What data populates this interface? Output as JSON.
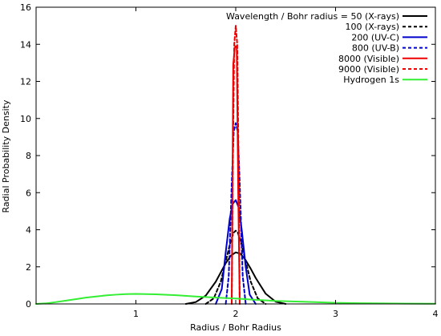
{
  "chart_data": {
    "type": "line",
    "title": "",
    "xlabel": "Radius / Bohr Radius",
    "ylabel": "Radial Probability Density",
    "xlim": [
      0,
      4
    ],
    "ylim": [
      0,
      16
    ],
    "x_ticks": [
      "1",
      "2",
      "3",
      "4"
    ],
    "y_ticks": [
      "0",
      "2",
      "4",
      "6",
      "8",
      "10",
      "12",
      "14",
      "16"
    ],
    "legend_position": "top-right",
    "grid": false,
    "series": [
      {
        "name": "Wavelength / Bohr radius = 50 (X-rays)",
        "color": "#000000",
        "dash": "solid",
        "x": [
          1.5,
          1.6,
          1.7,
          1.8,
          1.85,
          1.9,
          1.95,
          2.0,
          2.05,
          2.1,
          2.15,
          2.2,
          2.3,
          2.4,
          2.5
        ],
        "y": [
          0.0,
          0.1,
          0.45,
          1.2,
          1.7,
          2.2,
          2.6,
          2.78,
          2.7,
          2.35,
          1.9,
          1.4,
          0.55,
          0.12,
          0.0
        ]
      },
      {
        "name": "100 (X-rays)",
        "color": "#000000",
        "dash": "dashed",
        "x": [
          1.7,
          1.78,
          1.85,
          1.9,
          1.95,
          1.98,
          2.0,
          2.02,
          2.05,
          2.1,
          2.15,
          2.22,
          2.3
        ],
        "y": [
          0.0,
          0.3,
          1.2,
          2.3,
          3.4,
          3.85,
          3.95,
          3.85,
          3.4,
          2.3,
          1.2,
          0.3,
          0.0
        ]
      },
      {
        "name": "200 (UV-C)",
        "color": "#0000cc",
        "dash": "solid",
        "x": [
          1.8,
          1.86,
          1.9,
          1.94,
          1.97,
          2.0,
          2.03,
          2.06,
          2.1,
          2.14,
          2.2
        ],
        "y": [
          0.0,
          0.8,
          2.8,
          4.6,
          5.4,
          5.6,
          5.2,
          4.0,
          2.0,
          0.5,
          0.0
        ]
      },
      {
        "name": "800 (UV-B)",
        "color": "#0000cc",
        "dash": "dashed",
        "x": [
          1.9,
          1.93,
          1.96,
          1.98,
          2.0,
          2.02,
          2.04,
          2.07,
          2.1
        ],
        "y": [
          0.0,
          1.5,
          6.5,
          9.3,
          9.75,
          9.3,
          6.5,
          1.5,
          0.0
        ]
      },
      {
        "name": "8000 (Visible)",
        "color": "#ee0000",
        "dash": "solid",
        "x": [
          1.96,
          1.975,
          1.99,
          2.0,
          2.01,
          2.025,
          2.04
        ],
        "y": [
          0.0,
          12.9,
          13.8,
          13.9,
          13.8,
          6.0,
          0.0
        ]
      },
      {
        "name": "9000 (Visible)",
        "color": "#ee0000",
        "dash": "dashed",
        "x": [
          1.96,
          1.97,
          1.985,
          2.0,
          2.015,
          2.03,
          2.04
        ],
        "y": [
          0.0,
          7.0,
          14.0,
          15.0,
          14.0,
          7.0,
          0.0
        ]
      },
      {
        "name": "Hydrogen 1s",
        "color": "#33ee33",
        "dash": "solid",
        "x": [
          0.0,
          0.1,
          0.2,
          0.3,
          0.4,
          0.5,
          0.6,
          0.7,
          0.8,
          0.9,
          1.0,
          1.2,
          1.4,
          1.6,
          1.8,
          2.0,
          2.2,
          2.4,
          2.6,
          2.8,
          3.0,
          3.25,
          3.5,
          3.75,
          4.0
        ],
        "y": [
          0.0,
          0.03,
          0.1,
          0.18,
          0.26,
          0.34,
          0.4,
          0.46,
          0.5,
          0.53,
          0.54,
          0.52,
          0.47,
          0.4,
          0.34,
          0.29,
          0.22,
          0.16,
          0.13,
          0.1,
          0.06,
          0.04,
          0.025,
          0.015,
          0.008
        ]
      }
    ]
  }
}
